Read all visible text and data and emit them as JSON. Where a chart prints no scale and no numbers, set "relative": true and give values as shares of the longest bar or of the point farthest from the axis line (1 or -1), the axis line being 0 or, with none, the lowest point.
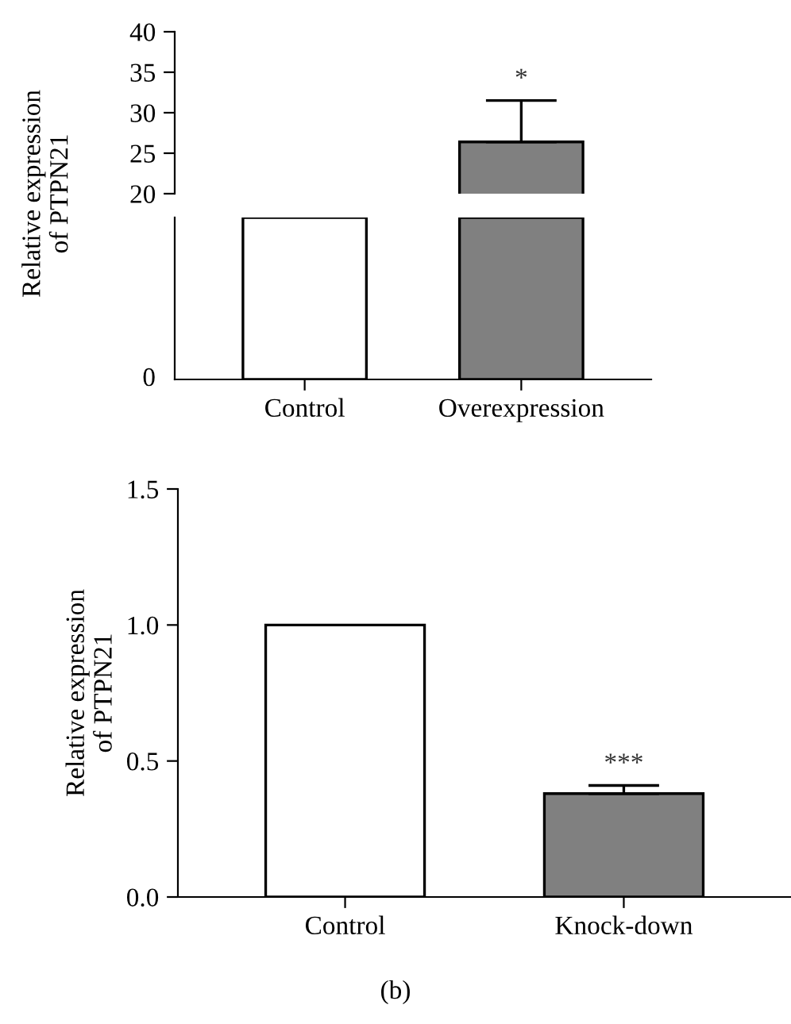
{
  "chart_data": [
    {
      "type": "bar",
      "categories": [
        null,
        null
      ],
      "values": [
        null,
        26.4
      ],
      "errors": [
        null,
        [
          26.4,
          31.5
        ]
      ],
      "colors": [
        "#ffffff",
        "#808080"
      ],
      "ylim": [
        20,
        40
      ],
      "yticks": [
        20,
        25,
        30,
        35,
        40
      ],
      "tick_labels": "y",
      "annotations": [
        "*"
      ]
    },
    {
      "type": "bar",
      "categories": [
        "Control",
        "Overexpression"
      ],
      "values": [
        1,
        1
      ],
      "colors": [
        "#ffffff",
        "#808080"
      ],
      "relative": true,
      "ylabel": "Relative expression\nof PTPN21",
      "annotations": [
        "0"
      ]
    },
    {
      "type": "bar",
      "categories": [
        "Control",
        "Knock-down"
      ],
      "values": [
        1.0,
        0.38
      ],
      "errors": [
        null,
        [
          0.38,
          0.41
        ]
      ],
      "colors": [
        "#ffffff",
        "#808080"
      ],
      "ylim": [
        0,
        1.5
      ],
      "yticks": [
        {
          "value": 0,
          "label": "0.0"
        },
        {
          "value": 0.5,
          "label": "0.5"
        },
        {
          "value": 1,
          "label": "1.0"
        },
        {
          "value": 1.5,
          "label": "1.5"
        }
      ],
      "ylabel": "Relative expression\nof PTPN21",
      "annotations": [
        "***",
        "(b)"
      ]
    }
  ]
}
